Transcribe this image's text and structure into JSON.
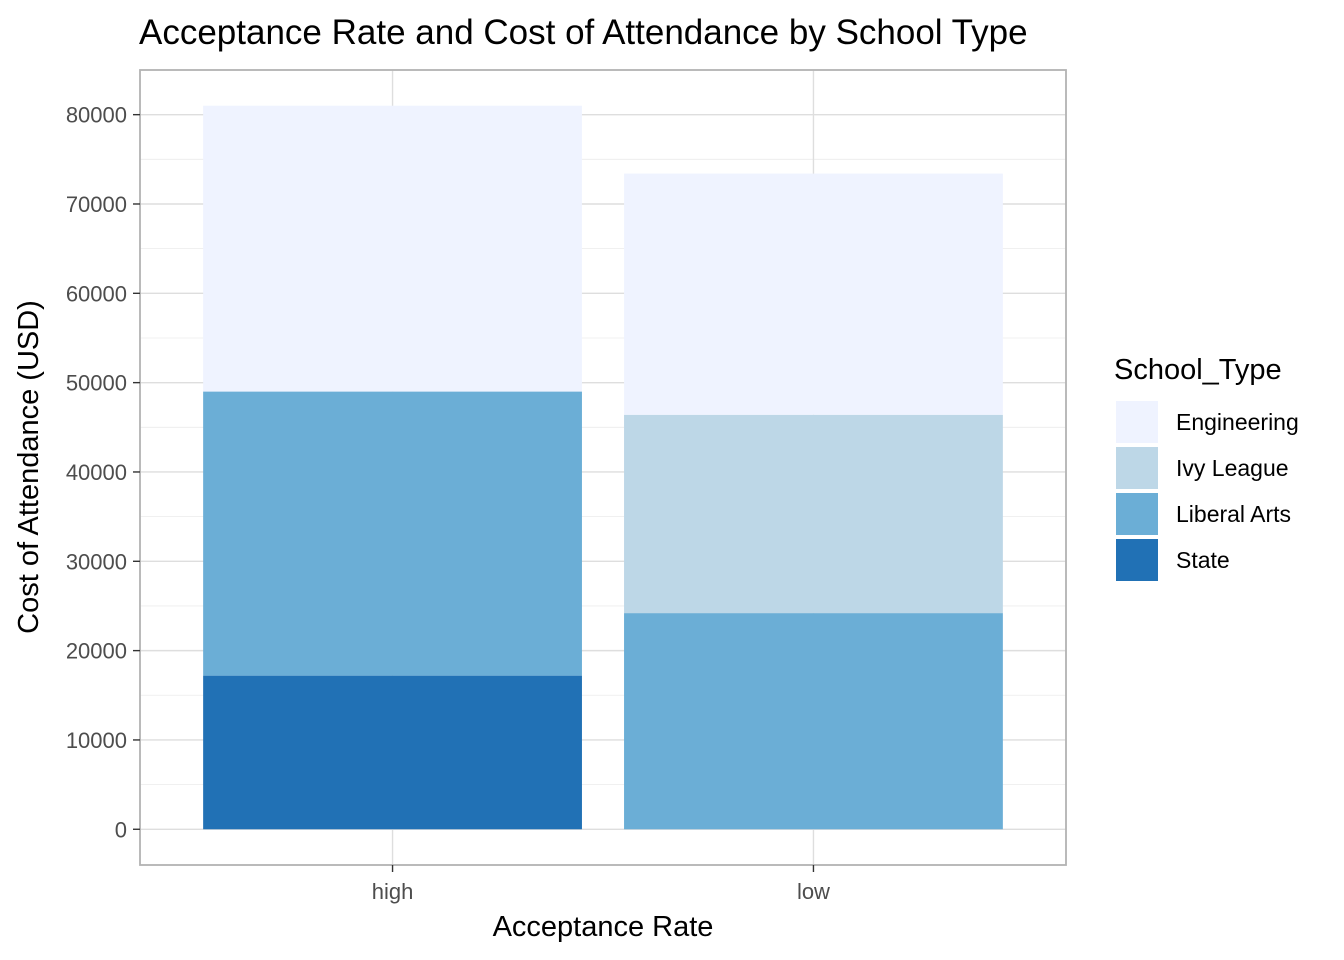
{
  "chart_data": {
    "type": "bar",
    "stacked": true,
    "title": "Acceptance Rate and Cost of Attendance by School Type",
    "xlabel": "Acceptance Rate",
    "ylabel": "Cost of Attendance (USD)",
    "categories": [
      "high",
      "low"
    ],
    "ylim": [
      -4000,
      85000
    ],
    "yticks": [
      "0",
      "10000",
      "20000",
      "30000",
      "40000",
      "50000",
      "60000",
      "70000",
      "80000"
    ],
    "grid": true,
    "legend": {
      "title": "School_Type",
      "position": "right",
      "entries": [
        "Engineering",
        "Ivy League",
        "Liberal Arts",
        "State"
      ]
    },
    "stack_order": [
      "State",
      "Liberal Arts",
      "Ivy League",
      "Engineering"
    ],
    "series": [
      {
        "name": "Engineering",
        "color": "#eff3ff",
        "values": [
          32000,
          27000
        ]
      },
      {
        "name": "Ivy League",
        "color": "#bdd7e7",
        "values": [
          0,
          22200
        ]
      },
      {
        "name": "Liberal Arts",
        "color": "#6baed6",
        "values": [
          31800,
          24200
        ]
      },
      {
        "name": "State",
        "color": "#2171b5",
        "values": [
          17200,
          0
        ]
      }
    ]
  }
}
